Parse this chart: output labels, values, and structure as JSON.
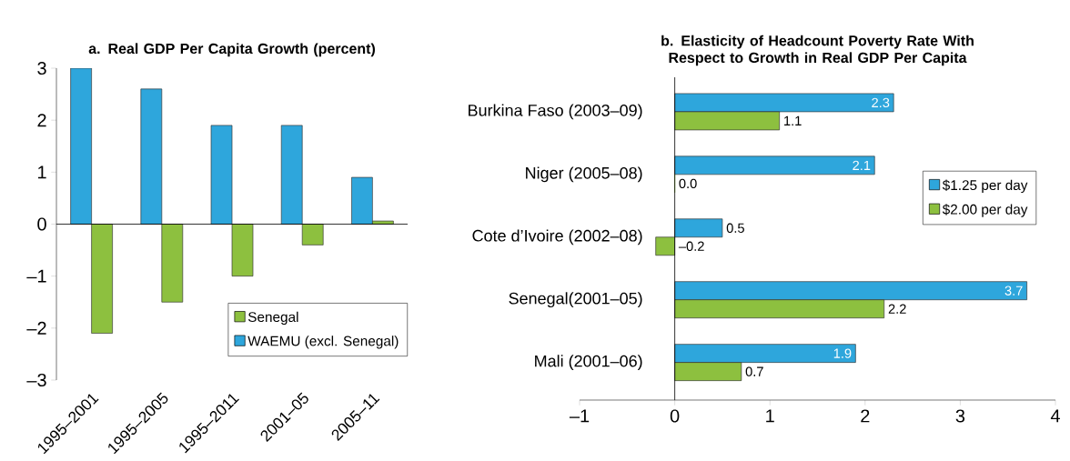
{
  "chart_data": [
    {
      "type": "bar",
      "title": "a. Real GDP Per Capita Growth (percent)",
      "categories": [
        "1995–2001",
        "1995–2005",
        "1995–2011",
        "2001–05",
        "2005–11"
      ],
      "series": [
        {
          "name": "WAEMU (excl. Senegal)",
          "color": "#2ea6dc",
          "values": [
            3.0,
            2.6,
            1.9,
            1.9,
            0.9
          ]
        },
        {
          "name": "Senegal",
          "color": "#8dc03f",
          "values": [
            -2.1,
            -1.5,
            -1.0,
            -0.4,
            0.06
          ]
        }
      ],
      "ylim": [
        -3,
        3
      ],
      "yticks": [
        {
          "value": -3,
          "label": "–3"
        },
        {
          "value": -2,
          "label": "–2"
        },
        {
          "value": -1,
          "label": "–1"
        },
        0,
        1,
        2,
        3
      ],
      "legend": "bottom right"
    },
    {
      "type": "bar",
      "orientation": "horizontal",
      "title": "b. Elasticity of Headcount Poverty Rate With Respect to Growth in Real GDP Per Capita",
      "categories": [
        "Burkina Faso (2003–09)",
        "Niger (2005–08)",
        "Cote d’Ivoire (2002–08)",
        "Senegal(2001–05)",
        "Mali (2001–06)"
      ],
      "series": [
        {
          "name": "$1.25 per day",
          "color": "#2ea6dc",
          "values": [
            2.3,
            2.1,
            0.5,
            3.7,
            1.9
          ],
          "value_labels": [
            "2.3",
            "2.1",
            "0.5",
            "3.7",
            "1.9"
          ]
        },
        {
          "name": "$2.00 per day",
          "color": "#8dc03f",
          "values": [
            1.1,
            0.0,
            -0.2,
            2.2,
            0.7
          ],
          "value_labels": [
            "1.1",
            "0.0",
            "–0.2",
            "2.2",
            "0.7"
          ]
        }
      ],
      "xlim": [
        -1,
        4
      ],
      "xticks": [
        {
          "value": -1,
          "label": "–1"
        },
        0,
        1,
        2,
        3,
        4
      ],
      "legend": "right"
    }
  ]
}
